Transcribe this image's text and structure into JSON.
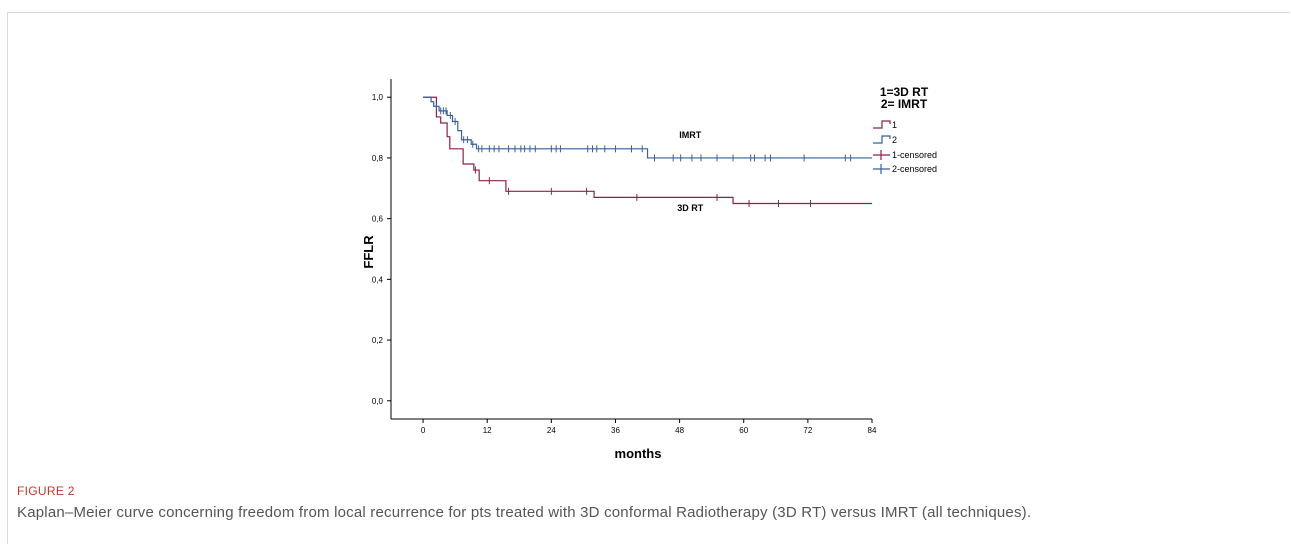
{
  "figure": {
    "label": "FIGURE 2",
    "caption": "Kaplan–Meier curve concerning freedom from local recurrence for pts treated with 3D conformal Radiotherapy (3D RT) versus IMRT (all techniques)."
  },
  "chart_data": {
    "type": "line",
    "subtype": "kaplan-meier step",
    "xlabel": "months",
    "ylabel": "FFLR",
    "xlim": [
      -6,
      84
    ],
    "ylim": [
      -0.06,
      1.06
    ],
    "x_ticks": [
      0,
      12,
      24,
      36,
      48,
      60,
      72,
      84
    ],
    "x_tick_labels": [
      "0",
      "12",
      "24",
      "36",
      "48",
      "60",
      "72",
      "84"
    ],
    "y_ticks": [
      0.0,
      0.2,
      0.4,
      0.6,
      0.8,
      1.0
    ],
    "y_tick_labels": [
      "0,0",
      "0,2",
      "0,4",
      "0,6",
      "0,8",
      "1,0"
    ],
    "grid": false,
    "legend": {
      "title_lines": [
        "1=3D RT",
        "2= IMRT"
      ],
      "placement": "top-right",
      "entries": [
        "1",
        "2",
        "1-censored",
        "2-censored"
      ]
    },
    "annotations": [
      {
        "text": "IMRT",
        "x": 50,
        "y": 0.865
      },
      {
        "text": "3D RT",
        "x": 50,
        "y": 0.625
      }
    ],
    "series": [
      {
        "name": "1",
        "color": "#8b2346",
        "steps": [
          [
            0,
            1.0
          ],
          [
            2.5,
            0.935
          ],
          [
            3.3,
            0.915
          ],
          [
            4.5,
            0.87
          ],
          [
            5.0,
            0.83
          ],
          [
            7.5,
            0.78
          ],
          [
            9.5,
            0.76
          ],
          [
            10.5,
            0.725
          ],
          [
            15.5,
            0.69
          ],
          [
            32,
            0.67
          ],
          [
            55,
            0.67
          ],
          [
            58,
            0.65
          ],
          [
            84,
            0.65
          ]
        ],
        "censored": [
          9.8,
          12.4,
          16.0,
          24.0,
          30.6,
          40.0,
          55.0,
          61.0,
          66.5,
          72.5
        ]
      },
      {
        "name": "2",
        "color": "#3a5f9c",
        "steps": [
          [
            0,
            1.0
          ],
          [
            1.5,
            0.985
          ],
          [
            2.0,
            0.97
          ],
          [
            3.0,
            0.955
          ],
          [
            4.5,
            0.94
          ],
          [
            5.5,
            0.92
          ],
          [
            6.5,
            0.89
          ],
          [
            7.2,
            0.86
          ],
          [
            9.0,
            0.845
          ],
          [
            10.0,
            0.83
          ],
          [
            42,
            0.8
          ],
          [
            84,
            0.8
          ]
        ],
        "censored": [
          2.5,
          3.3,
          3.8,
          4.3,
          5.1,
          6.0,
          7.6,
          8.3,
          9.3,
          10.4,
          11.0,
          12.4,
          13.3,
          14.2,
          16.0,
          17.2,
          18.3,
          19.0,
          20.0,
          21.0,
          24.0,
          24.9,
          25.7,
          30.8,
          31.7,
          32.5,
          34.0,
          36.0,
          39.0,
          41.0,
          43.3,
          46.8,
          48.2,
          50.3,
          52.0,
          55.0,
          58.0,
          61.3,
          62.0,
          64.0,
          65.0,
          71.3,
          79.0,
          80.0
        ]
      }
    ]
  }
}
